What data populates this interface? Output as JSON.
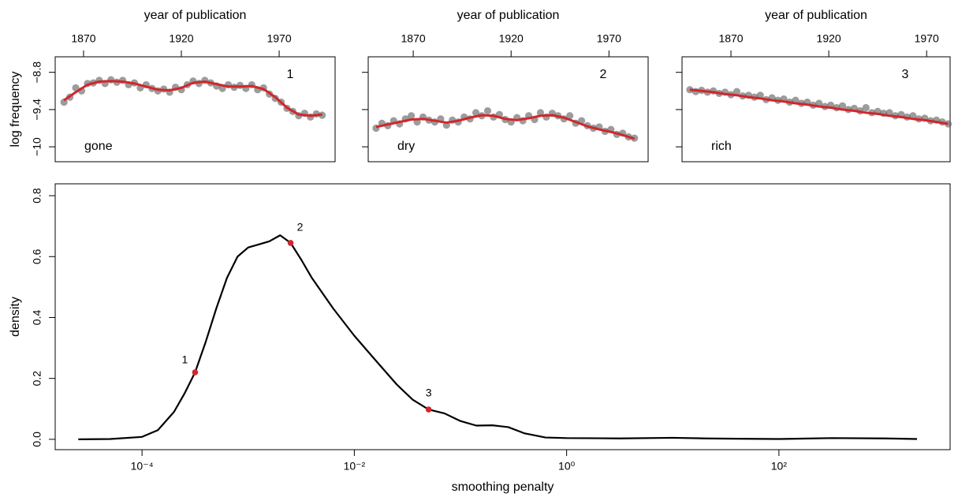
{
  "chart_data": [
    {
      "type": "scatter",
      "xlabel": "year of publication",
      "ylabel": "log frequency",
      "label": "1",
      "word": "gone",
      "xaxis_side": "top",
      "xlim": [
        1855.5,
        1998.6
      ],
      "xticks": [
        1870,
        1920,
        1970
      ],
      "ylim": [
        -10.24,
        -8.55
      ],
      "yticks": [
        {
          "value": -8.8,
          "label": "−8.8"
        },
        {
          "value": -9.4,
          "label": "−9.4"
        },
        {
          "value": -10,
          "label": "−10"
        }
      ],
      "ytick_labels": true,
      "point_color": "#5a5a5a",
      "x": [
        1860,
        1863,
        1866,
        1869,
        1872,
        1875,
        1878,
        1881,
        1884,
        1887,
        1890,
        1893,
        1896,
        1899,
        1902,
        1905,
        1908,
        1911,
        1914,
        1917,
        1920,
        1923,
        1926,
        1929,
        1932,
        1935,
        1938,
        1941,
        1944,
        1947,
        1950,
        1953,
        1956,
        1959,
        1962,
        1965,
        1968,
        1971,
        1974,
        1977,
        1980,
        1983,
        1986,
        1989,
        1992
      ],
      "y": [
        -9.28,
        -9.2,
        -9.05,
        -9.1,
        -8.98,
        -8.97,
        -8.93,
        -8.98,
        -8.92,
        -8.96,
        -8.93,
        -9.0,
        -8.97,
        -9.05,
        -9.0,
        -9.06,
        -9.1,
        -9.07,
        -9.12,
        -9.04,
        -9.08,
        -9.0,
        -8.94,
        -8.98,
        -8.93,
        -8.97,
        -9.02,
        -9.06,
        -9.0,
        -9.04,
        -9.01,
        -9.06,
        -9.0,
        -9.08,
        -9.05,
        -9.15,
        -9.22,
        -9.28,
        -9.38,
        -9.43,
        -9.5,
        -9.46,
        -9.52,
        -9.47,
        -9.49
      ],
      "fit": {
        "color": "#d0272c",
        "x": [
          1860,
          1866,
          1872,
          1878,
          1884,
          1890,
          1896,
          1902,
          1908,
          1914,
          1920,
          1926,
          1932,
          1938,
          1944,
          1950,
          1956,
          1962,
          1968,
          1974,
          1980,
          1986,
          1992
        ],
        "y": [
          -9.25,
          -9.12,
          -9.0,
          -8.95,
          -8.94,
          -8.95,
          -8.98,
          -9.03,
          -9.08,
          -9.09,
          -9.05,
          -8.97,
          -8.95,
          -8.99,
          -9.03,
          -9.03,
          -9.02,
          -9.07,
          -9.2,
          -9.37,
          -9.48,
          -9.5,
          -9.48
        ]
      }
    },
    {
      "type": "scatter",
      "xlabel": "year of publication",
      "label": "2",
      "word": "dry",
      "xaxis_side": "top",
      "xlim": [
        1847,
        1990
      ],
      "xticks": [
        1870,
        1920,
        1970
      ],
      "ylim": [
        -10.24,
        -8.55
      ],
      "yticks": [
        -8.8,
        -9.4,
        -10
      ],
      "ytick_labels": false,
      "point_color": "#5a5a5a",
      "x": [
        1851,
        1854,
        1857,
        1860,
        1863,
        1866,
        1869,
        1872,
        1875,
        1878,
        1881,
        1884,
        1887,
        1890,
        1893,
        1896,
        1899,
        1902,
        1905,
        1908,
        1911,
        1914,
        1917,
        1920,
        1923,
        1926,
        1929,
        1932,
        1935,
        1938,
        1941,
        1944,
        1947,
        1950,
        1953,
        1956,
        1959,
        1962,
        1965,
        1968,
        1971,
        1974,
        1977,
        1980,
        1983
      ],
      "y": [
        -9.7,
        -9.62,
        -9.66,
        -9.58,
        -9.63,
        -9.55,
        -9.5,
        -9.6,
        -9.52,
        -9.57,
        -9.6,
        -9.55,
        -9.65,
        -9.57,
        -9.6,
        -9.52,
        -9.55,
        -9.45,
        -9.5,
        -9.42,
        -9.52,
        -9.48,
        -9.56,
        -9.6,
        -9.53,
        -9.58,
        -9.5,
        -9.56,
        -9.45,
        -9.52,
        -9.46,
        -9.5,
        -9.55,
        -9.5,
        -9.62,
        -9.58,
        -9.66,
        -9.7,
        -9.68,
        -9.75,
        -9.72,
        -9.8,
        -9.78,
        -9.84,
        -9.86
      ],
      "fit": {
        "color": "#d0272c",
        "x": [
          1851,
          1857,
          1863,
          1869,
          1875,
          1881,
          1887,
          1893,
          1899,
          1905,
          1911,
          1917,
          1923,
          1929,
          1935,
          1941,
          1947,
          1953,
          1959,
          1965,
          1971,
          1977,
          1983
        ],
        "y": [
          -9.68,
          -9.64,
          -9.6,
          -9.56,
          -9.55,
          -9.58,
          -9.61,
          -9.58,
          -9.53,
          -9.49,
          -9.5,
          -9.55,
          -9.57,
          -9.54,
          -9.5,
          -9.49,
          -9.53,
          -9.6,
          -9.67,
          -9.72,
          -9.76,
          -9.81,
          -9.87
        ]
      }
    },
    {
      "type": "scatter",
      "xlabel": "year of publication",
      "label": "3",
      "word": "rich",
      "xaxis_side": "top",
      "xlim": [
        1845,
        1982
      ],
      "xticks": [
        1870,
        1920,
        1970
      ],
      "ylim": [
        -10.24,
        -8.55
      ],
      "yticks": [
        -8.8,
        -9.4,
        -10
      ],
      "ytick_labels": false,
      "point_color": "#5a5a5a",
      "x": [
        1849,
        1852,
        1855,
        1858,
        1861,
        1864,
        1867,
        1870,
        1873,
        1876,
        1879,
        1882,
        1885,
        1888,
        1891,
        1894,
        1897,
        1900,
        1903,
        1906,
        1909,
        1912,
        1915,
        1918,
        1921,
        1924,
        1927,
        1930,
        1933,
        1936,
        1939,
        1942,
        1945,
        1948,
        1951,
        1954,
        1957,
        1960,
        1963,
        1966,
        1969,
        1972,
        1975,
        1978,
        1981
      ],
      "y": [
        -9.08,
        -9.11,
        -9.09,
        -9.12,
        -9.1,
        -9.14,
        -9.12,
        -9.16,
        -9.11,
        -9.18,
        -9.17,
        -9.2,
        -9.17,
        -9.24,
        -9.21,
        -9.25,
        -9.23,
        -9.28,
        -9.25,
        -9.3,
        -9.28,
        -9.33,
        -9.3,
        -9.35,
        -9.33,
        -9.37,
        -9.34,
        -9.4,
        -9.38,
        -9.42,
        -9.37,
        -9.45,
        -9.43,
        -9.46,
        -9.45,
        -9.5,
        -9.48,
        -9.52,
        -9.5,
        -9.55,
        -9.54,
        -9.58,
        -9.57,
        -9.6,
        -9.63
      ],
      "fit": {
        "color": "#d0272c",
        "x": [
          1849,
          1855,
          1861,
          1867,
          1873,
          1879,
          1885,
          1891,
          1897,
          1903,
          1909,
          1915,
          1921,
          1927,
          1933,
          1939,
          1945,
          1951,
          1957,
          1963,
          1969,
          1975,
          1981
        ],
        "y": [
          -9.08,
          -9.1,
          -9.12,
          -9.15,
          -9.17,
          -9.2,
          -9.22,
          -9.25,
          -9.27,
          -9.3,
          -9.32,
          -9.35,
          -9.37,
          -9.4,
          -9.42,
          -9.45,
          -9.47,
          -9.5,
          -9.52,
          -9.55,
          -9.57,
          -9.6,
          -9.63
        ]
      }
    },
    {
      "type": "line",
      "xlabel": "smoothing penalty",
      "ylabel": "density",
      "xscale": "log",
      "xaxis_side": "bottom",
      "xlim": [
        1.52e-05,
        4100
      ],
      "xticks": [
        {
          "value": 0.0001,
          "label": "10⁻⁴"
        },
        {
          "value": 0.01,
          "label": "10⁻²"
        },
        {
          "value": 1,
          "label": "10⁰"
        },
        {
          "value": 100,
          "label": "10²"
        }
      ],
      "ylim": [
        -0.034,
        0.839
      ],
      "yticks": [
        {
          "value": 0,
          "label": "0.0"
        },
        0.2,
        0.4,
        0.6,
        0.8
      ],
      "ytick_labels": true,
      "color": "#000000",
      "x": [
        2.51e-05,
        5.01e-05,
        0.0001,
        0.000141,
        0.0002,
        0.000251,
        0.000316,
        0.000398,
        0.000501,
        0.000631,
        0.000794,
        0.001,
        0.00126,
        0.00158,
        0.002,
        0.00251,
        0.00316,
        0.00398,
        0.00631,
        0.01,
        0.0158,
        0.0251,
        0.0355,
        0.0501,
        0.0708,
        0.1,
        0.141,
        0.2,
        0.282,
        0.398,
        0.631,
        1,
        3.16,
        10,
        20,
        39.8,
        100,
        316,
        1000,
        2000
      ],
      "y": [
        0.0,
        0.001,
        0.008,
        0.03,
        0.09,
        0.15,
        0.22,
        0.32,
        0.43,
        0.53,
        0.6,
        0.63,
        0.64,
        0.65,
        0.67,
        0.645,
        0.59,
        0.53,
        0.43,
        0.34,
        0.26,
        0.18,
        0.13,
        0.098,
        0.085,
        0.06,
        0.045,
        0.046,
        0.04,
        0.02,
        0.006,
        0.004,
        0.003,
        0.005,
        0.003,
        0.002,
        0.001,
        0.004,
        0.003,
        0.001
      ],
      "highlights": {
        "color": "#d0272c",
        "labels": [
          "1",
          "2",
          "3"
        ],
        "x": [
          0.000316,
          0.00251,
          0.0501
        ],
        "y": [
          0.22,
          0.645,
          0.098
        ]
      }
    }
  ]
}
